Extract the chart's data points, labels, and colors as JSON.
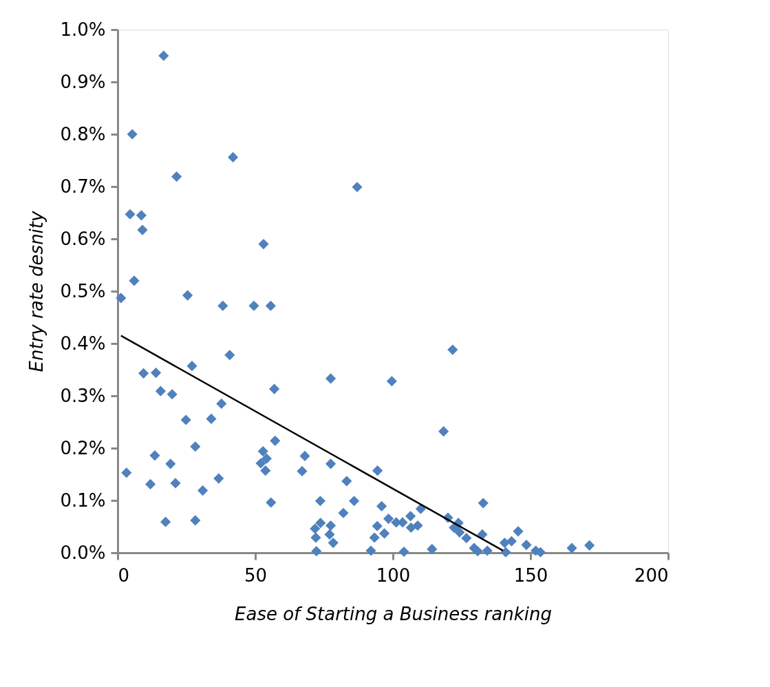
{
  "chart_data": {
    "type": "scatter",
    "xlabel": "Ease of Starting a Business ranking",
    "ylabel": "Entry rate desnity",
    "xlim": [
      0,
      200
    ],
    "xticks": [
      0,
      50,
      100,
      150,
      200
    ],
    "ylim": [
      0,
      1.0
    ],
    "yticks": [
      {
        "value": 0,
        "label": "0.0%"
      },
      {
        "value": 0.1,
        "label": "0.1%"
      },
      {
        "value": 0.2,
        "label": "0.2%"
      },
      {
        "value": 0.3,
        "label": "0.3%"
      },
      {
        "value": 0.4,
        "label": "0.4%"
      },
      {
        "value": 0.5,
        "label": "0.5%"
      },
      {
        "value": 0.6,
        "label": "0.6%"
      },
      {
        "value": 0.7,
        "label": "0.7%"
      },
      {
        "value": 0.8,
        "label": "0.8%"
      },
      {
        "value": 0.9,
        "label": "0.9%"
      },
      {
        "value": 1.0,
        "label": "1.0%"
      }
    ],
    "series": [
      {
        "color": "#4f81bd",
        "marker": "diamond",
        "x": [
          16.7,
          5.3,
          41.9,
          21.4,
          87.0,
          4.5,
          8.6,
          9.0,
          53.0,
          6.0,
          1.2,
          25.4,
          38.2,
          49.5,
          55.6,
          40.7,
          27.0,
          9.4,
          13.9,
          77.4,
          99.6,
          56.9,
          15.6,
          19.8,
          37.7,
          24.8,
          34.0,
          57.2,
          28.2,
          52.8,
          13.5,
          68.0,
          54.1,
          19.2,
          52.0,
          77.4,
          53.7,
          67.0,
          94.4,
          3.2,
          83.2,
          36.7,
          11.9,
          21.0,
          30.9,
          55.7,
          73.6,
          85.9,
          95.9,
          82.0,
          98.4,
          17.4,
          28.2,
          73.7,
          77.4,
          71.7,
          94.3,
          96.9,
          77.0,
          93.3,
          72.0,
          78.3,
          72.2,
          92.0,
          121.7,
          118.4,
          132.8,
          110.1,
          101.2,
          103.5,
          106.4,
          109.0,
          106.6,
          120.0,
          123.8,
          122.2,
          124.2,
          126.7,
          132.5,
          145.5,
          140.6,
          143.1,
          148.5,
          129.5,
          130.8,
          134.3,
          141.0,
          151.9,
          153.6,
          165.0,
          171.4,
          104.0,
          114.2
        ],
        "values": [
          0.95,
          0.8,
          0.756,
          0.719,
          0.699,
          0.647,
          0.645,
          0.617,
          0.59,
          0.52,
          0.487,
          0.492,
          0.472,
          0.472,
          0.472,
          0.378,
          0.357,
          0.343,
          0.344,
          0.333,
          0.328,
          0.313,
          0.309,
          0.303,
          0.285,
          0.254,
          0.256,
          0.214,
          0.203,
          0.194,
          0.186,
          0.185,
          0.18,
          0.17,
          0.171,
          0.17,
          0.157,
          0.156,
          0.157,
          0.153,
          0.137,
          0.142,
          0.131,
          0.133,
          0.119,
          0.096,
          0.099,
          0.099,
          0.089,
          0.076,
          0.065,
          0.059,
          0.062,
          0.057,
          0.052,
          0.046,
          0.051,
          0.037,
          0.035,
          0.029,
          0.029,
          0.019,
          0.003,
          0.004,
          0.388,
          0.232,
          0.095,
          0.084,
          0.058,
          0.058,
          0.07,
          0.052,
          0.048,
          0.067,
          0.057,
          0.048,
          0.039,
          0.028,
          0.035,
          0.041,
          0.019,
          0.022,
          0.015,
          0.009,
          0.003,
          0.004,
          0.001,
          0.004,
          0.001,
          0.009,
          0.014,
          0.002,
          0.007
        ]
      },
      {
        "type": "line",
        "color": "#000000",
        "line_style": "solid",
        "marker": "none",
        "x": [
          1.2,
          140.0
        ],
        "values": [
          0.415,
          0.004
        ]
      }
    ]
  }
}
